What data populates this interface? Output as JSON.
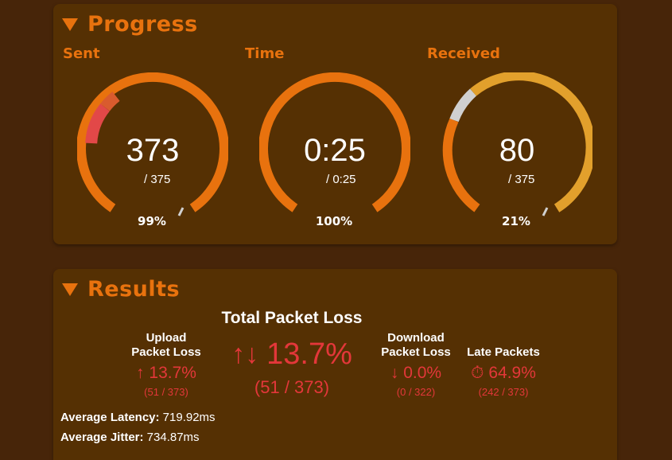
{
  "progress": {
    "title": "Progress",
    "gauges": [
      {
        "label": "Sent",
        "value": "373",
        "total": "/ 375",
        "percent": "99%",
        "fraction": 0.99
      },
      {
        "label": "Time",
        "value": "0:25",
        "total": "/ 0:25",
        "percent": "100%",
        "fraction": 1.0
      },
      {
        "label": "Received",
        "value": "80",
        "total": "/ 375",
        "percent": "21%",
        "fraction": 0.21
      }
    ]
  },
  "results": {
    "title": "Results",
    "total_loss": {
      "title": "Total Packet Loss",
      "icon": "up-down-arrows-icon",
      "value": "13.7%",
      "counts": "(51 / 373)"
    },
    "upload": {
      "title_line1": "Upload",
      "title_line2": "Packet Loss",
      "icon": "up-arrow-icon",
      "value": "13.7%",
      "counts": "(51 / 373)"
    },
    "download": {
      "title_line1": "Download",
      "title_line2": "Packet Loss",
      "icon": "down-arrow-icon",
      "value": "0.0%",
      "counts": "(0 / 322)"
    },
    "late": {
      "title": "Late Packets",
      "icon": "stopwatch-icon",
      "value": "64.9%",
      "counts": "(242 / 373)"
    },
    "avg_latency_label": "Average Latency:",
    "avg_latency_value": "719.92ms",
    "avg_jitter_label": "Average Jitter:",
    "avg_jitter_value": "734.87ms"
  },
  "colors": {
    "background": "#472509",
    "panel": "#553003",
    "accent_orange": "#e8720e",
    "received_gold": "#e2a02c",
    "loss_red": "#e3373a",
    "gauge_gray": "#d0d0d0"
  }
}
